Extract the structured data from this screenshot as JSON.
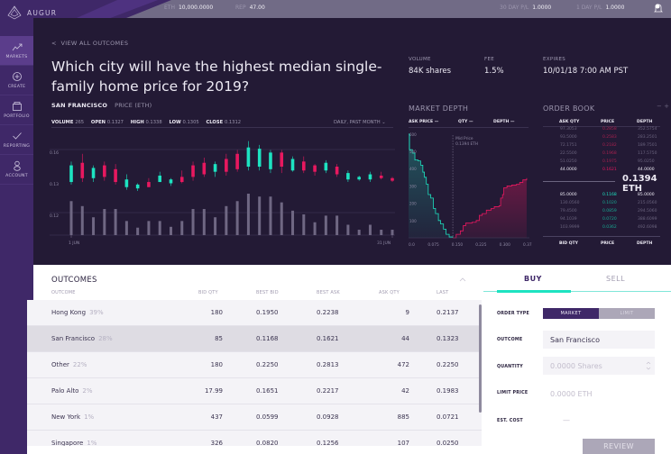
{
  "header": {
    "brand": "AUGUR",
    "stats": [
      {
        "label": "ETH",
        "value": "10,000.0000"
      },
      {
        "label": "REP",
        "value": "47.00"
      },
      {
        "label": "30 DAY P/L",
        "value": "1.0000"
      },
      {
        "label": "1 DAY P/L",
        "value": "1.0000"
      }
    ],
    "notifications_icon": "bell-icon"
  },
  "sidebar": {
    "items": [
      {
        "label": "MARKETS",
        "icon": "trending-up-icon",
        "active": true
      },
      {
        "label": "CREATE",
        "icon": "plus-circle-icon",
        "active": false
      },
      {
        "label": "PORTFOLIO",
        "icon": "briefcase-icon",
        "active": false
      },
      {
        "label": "REPORTING",
        "icon": "check-icon",
        "active": false
      },
      {
        "label": "ACCOUNT",
        "icon": "user-icon",
        "active": false
      }
    ]
  },
  "market": {
    "back_link": "VIEW ALL OUTCOMES",
    "title": "Which city will have the highest median single-family home price for 2019?",
    "selected_outcome": "SAN FRANCISCO",
    "price_unit": "PRICE (ETH)",
    "ohlc": {
      "volume_label": "VOLUME",
      "volume": "265",
      "open_label": "OPEN",
      "open": "0.1327",
      "high_label": "HIGH",
      "high": "0.1338",
      "low_label": "LOW",
      "low": "0.1305",
      "close_label": "CLOSE",
      "close": "0.1312"
    },
    "range_selector": "DAILY, PAST MONTH",
    "info": [
      {
        "label": "VOLUME",
        "value": "84K shares"
      },
      {
        "label": "FEE",
        "value": "1.5%"
      },
      {
        "label": "EXPIRES",
        "value": "10/01/18 7:00 AM PST"
      }
    ]
  },
  "chart_data": [
    {
      "type": "candlestick",
      "title": "SAN FRANCISCO PRICE (ETH)",
      "x_ticks": [
        "1 JUN",
        "31 JUN"
      ],
      "y_ticks": [
        "0.16",
        "0.13",
        "0.12"
      ],
      "colors": {
        "up": "#1de3c1",
        "down": "#e8185f",
        "volume": "#6f6783"
      },
      "candles": [
        {
          "o": 0.133,
          "c": 0.146,
          "h": 0.149,
          "l": 0.131,
          "v": 0.82
        },
        {
          "o": 0.148,
          "c": 0.136,
          "h": 0.155,
          "l": 0.133,
          "v": 0.7
        },
        {
          "o": 0.136,
          "c": 0.144,
          "h": 0.146,
          "l": 0.133,
          "v": 0.43
        },
        {
          "o": 0.146,
          "c": 0.137,
          "h": 0.149,
          "l": 0.134,
          "v": 0.63
        },
        {
          "o": 0.143,
          "c": 0.133,
          "h": 0.147,
          "l": 0.131,
          "v": 0.63
        },
        {
          "o": 0.129,
          "c": 0.135,
          "h": 0.139,
          "l": 0.127,
          "v": 0.34
        },
        {
          "o": 0.128,
          "c": 0.131,
          "h": 0.132,
          "l": 0.126,
          "v": 0.18
        },
        {
          "o": 0.133,
          "c": 0.129,
          "h": 0.136,
          "l": 0.129,
          "v": 0.34
        },
        {
          "o": 0.133,
          "c": 0.138,
          "h": 0.141,
          "l": 0.133,
          "v": 0.34
        },
        {
          "o": 0.132,
          "c": 0.135,
          "h": 0.136,
          "l": 0.13,
          "v": 0.2
        },
        {
          "o": 0.137,
          "c": 0.133,
          "h": 0.142,
          "l": 0.132,
          "v": 0.34
        },
        {
          "o": 0.146,
          "c": 0.137,
          "h": 0.149,
          "l": 0.134,
          "v": 0.63
        },
        {
          "o": 0.148,
          "c": 0.139,
          "h": 0.152,
          "l": 0.137,
          "v": 0.63
        },
        {
          "o": 0.141,
          "c": 0.147,
          "h": 0.149,
          "l": 0.137,
          "v": 0.43
        },
        {
          "o": 0.151,
          "c": 0.141,
          "h": 0.155,
          "l": 0.138,
          "v": 0.7
        },
        {
          "o": 0.155,
          "c": 0.143,
          "h": 0.158,
          "l": 0.141,
          "v": 0.82
        },
        {
          "o": 0.145,
          "c": 0.16,
          "h": 0.165,
          "l": 0.142,
          "v": 1.0
        },
        {
          "o": 0.145,
          "c": 0.159,
          "h": 0.162,
          "l": 0.142,
          "v": 0.93
        },
        {
          "o": 0.143,
          "c": 0.156,
          "h": 0.158,
          "l": 0.14,
          "v": 0.93
        },
        {
          "o": 0.156,
          "c": 0.145,
          "h": 0.158,
          "l": 0.14,
          "v": 0.79
        },
        {
          "o": 0.142,
          "c": 0.151,
          "h": 0.153,
          "l": 0.141,
          "v": 0.59
        },
        {
          "o": 0.149,
          "c": 0.142,
          "h": 0.153,
          "l": 0.14,
          "v": 0.5
        },
        {
          "o": 0.146,
          "c": 0.141,
          "h": 0.147,
          "l": 0.138,
          "v": 0.31
        },
        {
          "o": 0.142,
          "c": 0.148,
          "h": 0.15,
          "l": 0.14,
          "v": 0.47
        },
        {
          "o": 0.145,
          "c": 0.139,
          "h": 0.147,
          "l": 0.137,
          "v": 0.47
        },
        {
          "o": 0.135,
          "c": 0.14,
          "h": 0.142,
          "l": 0.133,
          "v": 0.25
        },
        {
          "o": 0.135,
          "c": 0.137,
          "h": 0.138,
          "l": 0.134,
          "v": 0.13
        },
        {
          "o": 0.135,
          "c": 0.139,
          "h": 0.141,
          "l": 0.133,
          "v": 0.25
        },
        {
          "o": 0.138,
          "c": 0.136,
          "h": 0.141,
          "l": 0.135,
          "v": 0.13
        },
        {
          "o": 0.136,
          "c": 0.134,
          "h": 0.137,
          "l": 0.133,
          "v": 0.13
        }
      ],
      "ylim": [
        0.118,
        0.166
      ]
    },
    {
      "type": "area",
      "title": "MARKET DEPTH",
      "legend": [
        "ASK PRICE",
        "QTY",
        "DEPTH"
      ],
      "x_ticks": [
        "0.0",
        "0.075",
        "0.150",
        "0.225",
        "0.300",
        "0.375"
      ],
      "y_ticks": [
        "600",
        "500",
        "400",
        "300",
        "200",
        "100"
      ],
      "xlim": [
        0,
        0.375
      ],
      "ylim": [
        0,
        620
      ],
      "annotation": {
        "label": "Mid Price",
        "value": "0.1394 ETH",
        "x": 0.1394
      },
      "bids": {
        "color": "#1de3c1",
        "points": [
          [
            0,
            600
          ],
          [
            0.003,
            510
          ],
          [
            0.012,
            490
          ],
          [
            0.02,
            450
          ],
          [
            0.03,
            445
          ],
          [
            0.038,
            420
          ],
          [
            0.045,
            380
          ],
          [
            0.05,
            350
          ],
          [
            0.056,
            310
          ],
          [
            0.062,
            250
          ],
          [
            0.07,
            230
          ],
          [
            0.078,
            170
          ],
          [
            0.085,
            140
          ],
          [
            0.094,
            100
          ],
          [
            0.101,
            80
          ],
          [
            0.11,
            50
          ],
          [
            0.118,
            20
          ],
          [
            0.128,
            5
          ],
          [
            0.139,
            0
          ]
        ]
      },
      "asks": {
        "color": "#e8185f",
        "points": [
          [
            0.139,
            0
          ],
          [
            0.15,
            20
          ],
          [
            0.163,
            40
          ],
          [
            0.172,
            70
          ],
          [
            0.18,
            85
          ],
          [
            0.2,
            90
          ],
          [
            0.213,
            100
          ],
          [
            0.223,
            130
          ],
          [
            0.232,
            140
          ],
          [
            0.245,
            160
          ],
          [
            0.26,
            170
          ],
          [
            0.27,
            180
          ],
          [
            0.285,
            185
          ],
          [
            0.29,
            230
          ],
          [
            0.296,
            250
          ],
          [
            0.3,
            290
          ],
          [
            0.31,
            300
          ],
          [
            0.325,
            305
          ],
          [
            0.34,
            310
          ],
          [
            0.35,
            320
          ],
          [
            0.36,
            335
          ],
          [
            0.372,
            345
          ]
        ]
      }
    }
  ],
  "order_book": {
    "title": "ORDER BOOK",
    "zoom_controls": "− +",
    "headers_top": [
      "ASK QTY",
      "PRICE",
      "DEPTH"
    ],
    "asks": [
      {
        "qty": "97.3053",
        "price": "0.2858",
        "depth": "352.5754"
      },
      {
        "qty": "93.5000",
        "price": "0.2583",
        "depth": "283.2501"
      },
      {
        "qty": "72.1751",
        "price": "0.2182",
        "depth": "189.7501"
      },
      {
        "qty": "22.5500",
        "price": "0.1968",
        "depth": "117.5750"
      },
      {
        "qty": "51.0250",
        "price": "0.1975",
        "depth": "95.0250"
      },
      {
        "qty": "44.0000",
        "price": "0.1621",
        "depth": "44.0000"
      }
    ],
    "mid_price": "0.1394 ETH",
    "bids": [
      {
        "qty": "85.0000",
        "price": "0.1168",
        "depth": "85.0000"
      },
      {
        "qty": "130.0560",
        "price": "0.1020",
        "depth": "215.0560"
      },
      {
        "qty": "79.4500",
        "price": "0.0859",
        "depth": "294.5060"
      },
      {
        "qty": "94.1039",
        "price": "0.0720",
        "depth": "388.6099"
      },
      {
        "qty": "103.9999",
        "price": "0.0362",
        "depth": "492.6098"
      }
    ],
    "headers_bottom": [
      "BID QTY",
      "PRICE",
      "DEPTH"
    ],
    "ask_color": "#e8185f",
    "bid_color": "#1de3c1"
  },
  "outcomes": {
    "title": "OUTCOMES",
    "columns": [
      "OUTCOME",
      "BID QTY",
      "BEST BID",
      "BEST ASK",
      "ASK QTY",
      "LAST"
    ],
    "rows": [
      {
        "name": "Hong Kong",
        "pct": "39%",
        "bid_qty": "180",
        "best_bid": "0.1950",
        "best_ask": "0.2238",
        "ask_qty": "9",
        "last": "0.2137",
        "selected": false
      },
      {
        "name": "San Francisco",
        "pct": "28%",
        "bid_qty": "85",
        "best_bid": "0.1168",
        "best_ask": "0.1621",
        "ask_qty": "44",
        "last": "0.1323",
        "selected": true
      },
      {
        "name": "Other",
        "pct": "22%",
        "bid_qty": "180",
        "best_bid": "0.2250",
        "best_ask": "0.2813",
        "ask_qty": "472",
        "last": "0.2250",
        "selected": false
      },
      {
        "name": "Palo Alto",
        "pct": "2%",
        "bid_qty": "17.99",
        "best_bid": "0.1651",
        "best_ask": "0.2217",
        "ask_qty": "42",
        "last": "0.1983",
        "selected": false
      },
      {
        "name": "New York",
        "pct": "1%",
        "bid_qty": "437",
        "best_bid": "0.0599",
        "best_ask": "0.0928",
        "ask_qty": "885",
        "last": "0.0721",
        "selected": false
      },
      {
        "name": "Singapore",
        "pct": "1%",
        "bid_qty": "326",
        "best_bid": "0.0820",
        "best_ask": "0.1256",
        "ask_qty": "107",
        "last": "0.0250",
        "selected": false
      }
    ]
  },
  "trade": {
    "tabs": [
      {
        "label": "BUY",
        "active": true
      },
      {
        "label": "SELL",
        "active": false
      }
    ],
    "order_type_label": "ORDER TYPE",
    "order_types": [
      {
        "label": "MARKET",
        "active": true
      },
      {
        "label": "LIMIT",
        "active": false
      }
    ],
    "outcome_label": "OUTCOME",
    "outcome_value": "San Francisco",
    "quantity_label": "QUANTITY",
    "quantity_placeholder": "0.0000 Shares",
    "limit_price_label": "LIMIT PRICE",
    "limit_price_placeholder": "0.0000 ETH",
    "est_cost_label": "EST. COST",
    "est_cost_value": "—",
    "review_label": "REVIEW"
  },
  "colors": {
    "brand_purple": "#3f2868",
    "bg_dark": "#231a35",
    "teal": "#1de3c1",
    "pink": "#e8185f"
  }
}
